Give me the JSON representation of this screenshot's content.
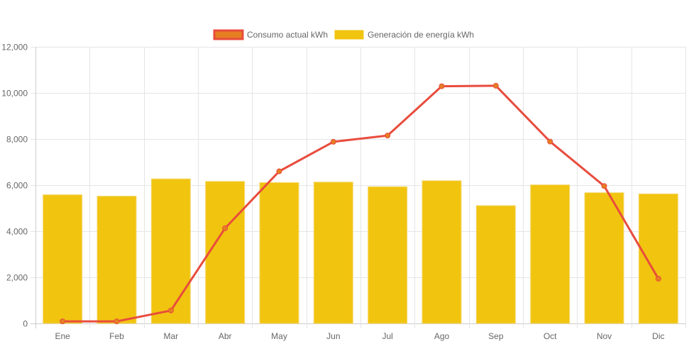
{
  "chart_data": {
    "type": "bar",
    "title": "",
    "xlabel": "",
    "ylabel": "",
    "ylim": [
      0,
      12000
    ],
    "yticks": [
      0,
      2000,
      4000,
      6000,
      8000,
      10000,
      12000
    ],
    "ytick_labels": [
      "0",
      "2,000",
      "4,000",
      "6,000",
      "8,000",
      "10,000",
      "12,000"
    ],
    "grid": true,
    "legend_position": "top-center",
    "categories": [
      "Ene",
      "Feb",
      "Mar",
      "Abr",
      "May",
      "Jun",
      "Jul",
      "Ago",
      "Sep",
      "Oct",
      "Nov",
      "Dic"
    ],
    "series": [
      {
        "name": "Consumo actual kWh",
        "type": "line",
        "color": "#e84c3d",
        "point_color": "#e67e22",
        "values": [
          90,
          90,
          560,
          4130,
          6600,
          7880,
          8150,
          10290,
          10310,
          7890,
          5960,
          1940
        ]
      },
      {
        "name": "Generación de energía kWh",
        "type": "bar",
        "color": "#f1c40f",
        "values": [
          5580,
          5520,
          6270,
          6160,
          6110,
          6130,
          5930,
          6190,
          5110,
          6010,
          5670,
          5620
        ]
      }
    ]
  },
  "legend": {
    "items": [
      {
        "label": "Consumo actual kWh",
        "fill": "#e67e22",
        "border": "#e84c3d"
      },
      {
        "label": "Generación de energía kWh",
        "fill": "#f1c40f",
        "border": "#f1c40f"
      }
    ]
  }
}
